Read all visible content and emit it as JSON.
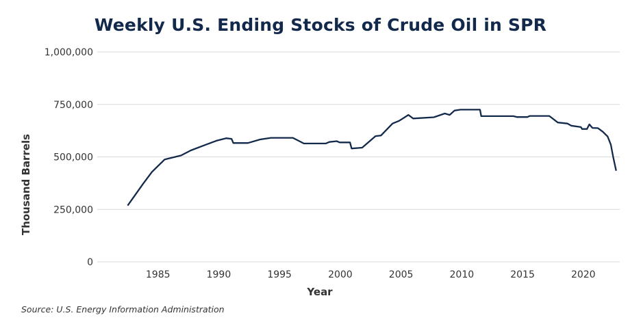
{
  "chart_data": {
    "type": "line",
    "title": "Weekly U.S. Ending Stocks of Crude Oil in SPR",
    "xlabel": "Year",
    "ylabel": "Thousand Barrels",
    "source": "Source: U.S. Energy Information Administration",
    "xlim": [
      1980,
      2023
    ],
    "ylim": [
      0,
      1000000
    ],
    "grid": "horizontal",
    "line_color": "#13294b",
    "x_ticks": [
      1985,
      1990,
      1995,
      2000,
      2005,
      2010,
      2015,
      2020
    ],
    "x_tick_labels": [
      "1985",
      "1990",
      "1995",
      "2000",
      "2005",
      "2010",
      "2015",
      "2020"
    ],
    "y_ticks": [
      0,
      250000,
      500000,
      750000,
      1000000
    ],
    "y_tick_labels": [
      "0",
      "250,000",
      "500,000",
      "750,000",
      "1,000,000"
    ],
    "series": [
      {
        "x": [
          1982.5,
          1983.8,
          1984.5,
          1985.55,
          1986.9,
          1987.7,
          1988.8,
          1989.8,
          1990.6,
          1991.05,
          1991.2,
          1992.4,
          1993.4,
          1994.3,
          1996.1,
          1997.0,
          1998.8,
          1999.1,
          1999.7,
          1999.95,
          2000.8,
          2000.93,
          2001.8,
          2002.9,
          2003.35,
          2004.3,
          2004.85,
          2005.6,
          2006.0,
          2007.7,
          2008.6,
          2009.0,
          2009.4,
          2009.9,
          2011.5,
          2011.6,
          2014.25,
          2014.55,
          2015.4,
          2015.6,
          2017.2,
          2017.9,
          2018.7,
          2019.0,
          2019.8,
          2019.9,
          2020.3,
          2020.5,
          2020.75,
          2021.2,
          2021.6,
          2022.0,
          2022.27,
          2022.46,
          2022.7
        ],
        "y": [
          268000,
          374000,
          428000,
          488000,
          507000,
          531000,
          555000,
          577000,
          589000,
          586000,
          566000,
          566000,
          583000,
          591000,
          591000,
          564000,
          564000,
          571000,
          575000,
          569000,
          569000,
          540000,
          544000,
          599000,
          602000,
          659000,
          672000,
          700000,
          683000,
          689000,
          707000,
          700000,
          721000,
          725000,
          725000,
          694000,
          694000,
          690000,
          690000,
          695000,
          695000,
          664000,
          659000,
          649000,
          642000,
          633000,
          633000,
          655000,
          638000,
          637000,
          620000,
          597000,
          558000,
          499000,
          434000
        ]
      }
    ]
  }
}
